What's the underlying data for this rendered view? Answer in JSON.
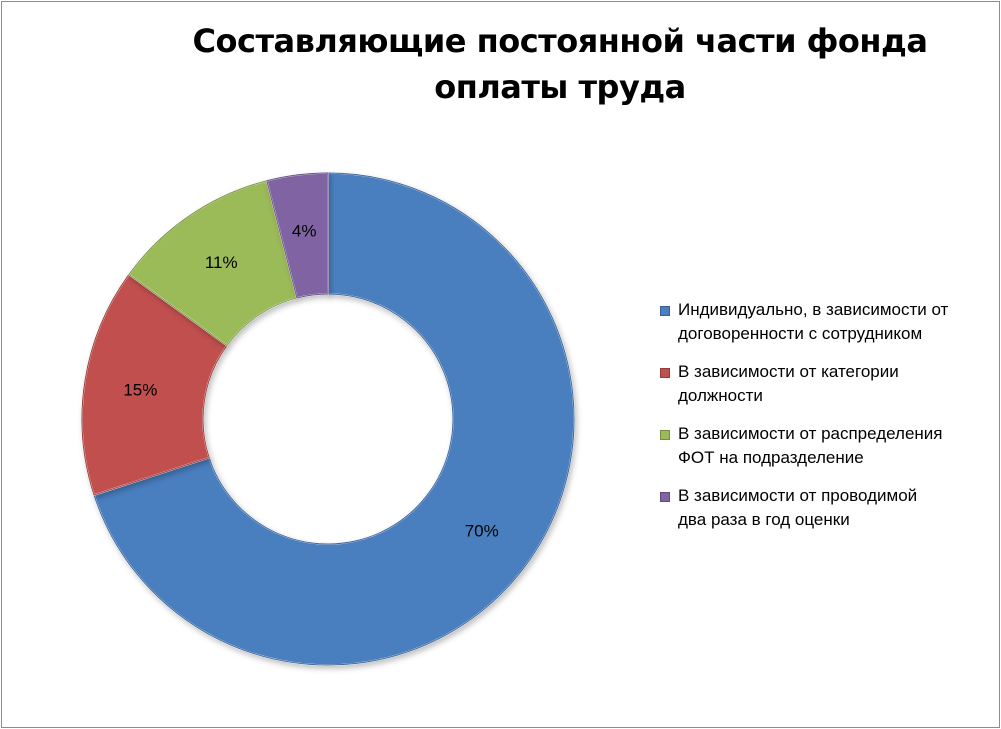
{
  "chart_data": {
    "type": "pie",
    "variant": "doughnut",
    "title": "Составляющие постоянной части фонда оплаты труда",
    "categories": [
      "Индивидуально, в зависимости от договоренности с сотрудником",
      "В зависимости от категории должности",
      "В зависимости от распределения ФОТ на подразделение",
      "В зависимости от проводимой два раза в год оценки"
    ],
    "values": [
      70,
      15,
      11,
      4
    ],
    "data_labels": [
      "70%",
      "15%",
      "11%",
      "4%"
    ],
    "colors": [
      "#4a7ebf",
      "#c0504d",
      "#9bbb59",
      "#8064a2"
    ],
    "legend_position": "right"
  },
  "legend": {
    "items": [
      {
        "lines": [
          "Индивидуально, в зависимости от",
          "договоренности с сотрудником"
        ]
      },
      {
        "lines": [
          "В зависимости от категории",
          "должности"
        ]
      },
      {
        "lines": [
          "В зависимости от распределения",
          "ФОТ на подразделение"
        ]
      },
      {
        "lines": [
          "В зависимости от проводимой",
          "два раза в год оценки"
        ]
      }
    ]
  }
}
